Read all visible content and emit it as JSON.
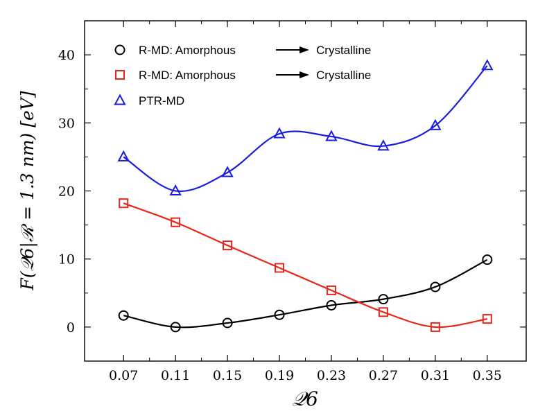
{
  "chart_data": {
    "type": "line",
    "title": "",
    "xlabel": "𝒬6",
    "ylabel": "F(𝒬6|ℛ = 1.3 nm) [eV]",
    "x": [
      0.07,
      0.11,
      0.15,
      0.19,
      0.23,
      0.27,
      0.31,
      0.35
    ],
    "x_tick_labels": [
      "0.07",
      "0.11",
      "0.15",
      "0.19",
      "0.23",
      "0.27",
      "0.31",
      "0.35"
    ],
    "xlim": [
      0.04,
      0.38
    ],
    "ylim": [
      -5,
      45
    ],
    "y_ticks": [
      0,
      10,
      20,
      30,
      40
    ],
    "y_tick_labels": [
      "0",
      "10",
      "20",
      "30",
      "40"
    ],
    "grid": false,
    "legend_position": "top-left",
    "series": [
      {
        "name": "R-MD: Amorphous",
        "legend_suffix": "Crystalline",
        "color": "#000000",
        "marker": "circle",
        "values": [
          1.7,
          0.0,
          0.6,
          1.8,
          3.2,
          4.1,
          5.9,
          9.9
        ]
      },
      {
        "name": "R-MD: Amorphous",
        "legend_suffix": "Crystalline",
        "color": "#e8261c",
        "marker": "square",
        "values": [
          18.2,
          15.4,
          12.0,
          8.7,
          5.4,
          2.2,
          0.0,
          1.2
        ]
      },
      {
        "name": "PTR-MD",
        "legend_suffix": "",
        "color": "#1c1ce0",
        "marker": "triangle",
        "values": [
          25.0,
          20.0,
          22.7,
          28.4,
          28.0,
          26.6,
          29.6,
          38.4
        ]
      }
    ]
  }
}
